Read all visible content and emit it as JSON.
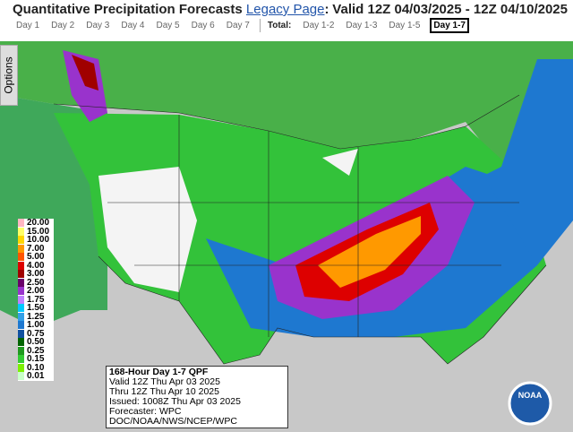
{
  "header": {
    "title": "Quantitative Precipitation Forecasts",
    "legacy_link": "Legacy Page",
    "colon": ":",
    "valid": "Valid 12Z 04/03/2025 - 12Z 04/10/2025"
  },
  "tabs": {
    "days": [
      "Day 1",
      "Day 2",
      "Day 3",
      "Day 4",
      "Day 5",
      "Day 6",
      "Day 7"
    ],
    "total_label": "Total:",
    "totals": [
      "Day 1-2",
      "Day 1-3",
      "Day 1-5",
      "Day 1-7"
    ],
    "selected": "Day 1-7"
  },
  "options": "Options",
  "legend": [
    {
      "label": "20.00",
      "color": "#ffb6c1"
    },
    {
      "label": "15.00",
      "color": "#ffff66"
    },
    {
      "label": "10.00",
      "color": "#ffd700"
    },
    {
      "label": "7.00",
      "color": "#ff9900"
    },
    {
      "label": "5.00",
      "color": "#ff5500"
    },
    {
      "label": "4.00",
      "color": "#dd0000"
    },
    {
      "label": "3.00",
      "color": "#a00000"
    },
    {
      "label": "2.50",
      "color": "#6a006a"
    },
    {
      "label": "2.00",
      "color": "#9933cc"
    },
    {
      "label": "1.75",
      "color": "#c080ff"
    },
    {
      "label": "1.50",
      "color": "#00c8ff"
    },
    {
      "label": "1.25",
      "color": "#33a0e8"
    },
    {
      "label": "1.00",
      "color": "#1e78d0"
    },
    {
      "label": "0.75",
      "color": "#1050a0"
    },
    {
      "label": "0.50",
      "color": "#006400"
    },
    {
      "label": "0.25",
      "color": "#1f9a1f"
    },
    {
      "label": "0.15",
      "color": "#33cc33"
    },
    {
      "label": "0.10",
      "color": "#7cf000"
    },
    {
      "label": "0.01",
      "color": "#c8ffc8"
    }
  ],
  "info": {
    "title": "168-Hour Day 1-7 QPF",
    "lines": [
      "Valid 12Z Thu Apr 03 2025",
      "Thru 12Z Thu Apr 10 2025",
      "Issued: 1008Z Thu Apr 03 2025",
      "Forecaster: WPC",
      "DOC/NOAA/NWS/NCEP/WPC"
    ]
  },
  "logo": "NOAA"
}
